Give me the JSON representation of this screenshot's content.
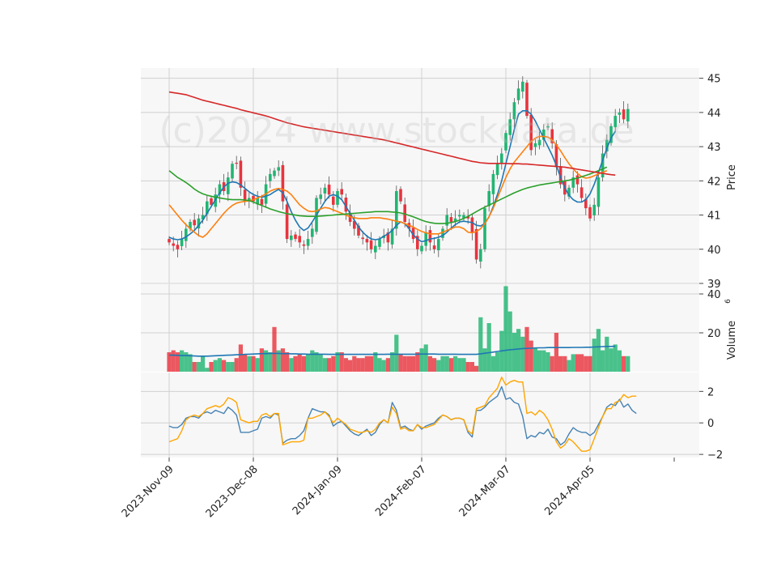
{
  "watermark": "(c)2024 www.stockdata.de",
  "colors": {
    "up": "#22b573",
    "down": "#e8343e",
    "sma_fast": "#1f77b4",
    "sma_mid": "#ff7f0e",
    "sma_slow": "#2ca02c",
    "sma_long": "#d62728",
    "volume_ma": "#1f77b4",
    "macd": "#4682b4",
    "signal": "#ffa500",
    "panel_bg": "#f7f7f7",
    "grid": "#d0d0d0"
  },
  "chart_data": [
    {
      "type": "candlestick",
      "panel": "price",
      "ylabel": "Price",
      "ylim": [
        39,
        45.3
      ],
      "yticks": [
        39,
        40,
        41,
        42,
        43,
        44,
        45
      ],
      "xlabels": [
        "2023-Nov-09",
        "2023-Dec-08",
        "2024-Jan-09",
        "2024-Feb-07",
        "2024-Mar-07",
        "2024-Apr-05"
      ],
      "xlabel_index": [
        0,
        20,
        40,
        60,
        80,
        100
      ],
      "closes": [
        40.2,
        40.1,
        40.0,
        40.3,
        40.6,
        40.8,
        40.7,
        40.9,
        41.0,
        41.4,
        41.3,
        41.6,
        41.9,
        41.7,
        42.1,
        42.5,
        42.5,
        41.8,
        41.4,
        41.5,
        41.4,
        41.5,
        41.3,
        41.9,
        42.2,
        42.3,
        42.4,
        41.4,
        40.3,
        40.4,
        40.3,
        40.2,
        40.1,
        40.3,
        40.6,
        41.5,
        41.6,
        41.8,
        41.6,
        41.3,
        41.7,
        41.6,
        41.1,
        40.8,
        40.6,
        40.4,
        40.3,
        40.2,
        40.0,
        40.1,
        40.3,
        40.4,
        40.2,
        40.6,
        41.7,
        41.4,
        40.8,
        40.6,
        40.3,
        40.0,
        40.1,
        40.5,
        40.2,
        40.0,
        40.3,
        40.6,
        41.0,
        40.8,
        40.9,
        41.0,
        41.0,
        40.9,
        40.5,
        39.7,
        40.0,
        41.2,
        41.7,
        42.2,
        42.5,
        42.8,
        43.4,
        43.8,
        44.3,
        44.7,
        44.9,
        43.9,
        42.9,
        43.1,
        43.2,
        43.5,
        43.6,
        43.1,
        42.4,
        41.9,
        41.6,
        41.8,
        42.1,
        41.9,
        41.5,
        41.2,
        40.9,
        41.3,
        42.1,
        42.8,
        43.2,
        43.6,
        43.9,
        44.0,
        43.8,
        44.1
      ],
      "series": [
        {
          "name": "",
          "key": "sma_fast",
          "values": [
            40.35,
            40.3,
            40.28,
            40.3,
            40.36,
            40.45,
            40.55,
            40.7,
            40.85,
            41.05,
            41.25,
            41.45,
            41.65,
            41.82,
            41.93,
            41.97,
            41.95,
            41.88,
            41.78,
            41.68,
            41.6,
            41.55,
            41.52,
            41.55,
            41.6,
            41.68,
            41.75,
            41.65,
            41.4,
            41.1,
            40.85,
            40.65,
            40.55,
            40.62,
            40.8,
            41.0,
            41.2,
            41.4,
            41.55,
            41.6,
            41.55,
            41.45,
            41.25,
            41.05,
            40.85,
            40.65,
            40.5,
            40.38,
            40.3,
            40.28,
            40.3,
            40.38,
            40.45,
            40.55,
            40.7,
            40.8,
            40.75,
            40.6,
            40.42,
            40.3,
            40.22,
            40.25,
            40.3,
            40.32,
            40.35,
            40.4,
            40.5,
            40.62,
            40.72,
            40.8,
            40.82,
            40.8,
            40.78,
            40.7,
            40.68,
            40.75,
            40.95,
            41.25,
            41.6,
            42.0,
            42.5,
            43.0,
            43.5,
            43.95,
            44.05,
            44.05,
            43.95,
            43.75,
            43.5,
            43.25,
            43.0,
            42.75,
            42.45,
            42.1,
            41.8,
            41.58,
            41.45,
            41.38,
            41.38,
            41.45,
            41.62,
            41.9,
            42.25,
            42.6,
            42.95,
            43.25,
            43.45
          ]
        },
        {
          "name": "",
          "key": "sma_mid",
          "values": [
            41.3,
            41.15,
            41.0,
            40.85,
            40.72,
            40.6,
            40.5,
            40.4,
            40.35,
            40.45,
            40.6,
            40.75,
            40.9,
            41.05,
            41.18,
            41.28,
            41.35,
            41.38,
            41.4,
            41.42,
            41.45,
            41.5,
            41.55,
            41.62,
            41.7,
            41.75,
            41.78,
            41.75,
            41.7,
            41.6,
            41.45,
            41.3,
            41.2,
            41.12,
            41.1,
            41.12,
            41.18,
            41.22,
            41.2,
            41.15,
            41.1,
            41.05,
            41.0,
            40.95,
            40.92,
            40.9,
            40.9,
            40.9,
            40.92,
            40.92,
            40.92,
            40.9,
            40.88,
            40.85,
            40.82,
            40.8,
            40.75,
            40.7,
            40.65,
            40.58,
            40.52,
            40.48,
            40.45,
            40.45,
            40.45,
            40.5,
            40.55,
            40.6,
            40.65,
            40.65,
            40.6,
            40.5,
            40.48,
            40.52,
            40.6,
            40.75,
            40.95,
            41.2,
            41.5,
            41.8,
            42.1,
            42.35,
            42.55,
            42.7,
            42.85,
            43.0,
            43.15,
            43.25,
            43.3,
            43.3,
            43.28,
            43.2,
            43.05,
            42.88,
            42.68,
            42.5,
            42.35,
            42.22,
            42.12,
            42.08,
            42.1,
            42.15,
            42.2,
            42.25,
            42.3
          ]
        },
        {
          "name": "",
          "key": "sma_slow",
          "values": [
            42.3,
            42.2,
            42.1,
            42.03,
            41.95,
            41.86,
            41.76,
            41.68,
            41.62,
            41.58,
            41.55,
            41.52,
            41.5,
            41.48,
            41.46,
            41.45,
            41.45,
            41.45,
            41.44,
            41.42,
            41.38,
            41.33,
            41.28,
            41.23,
            41.18,
            41.14,
            41.1,
            41.07,
            41.04,
            41.02,
            41.0,
            40.98,
            40.97,
            40.96,
            40.96,
            40.96,
            40.97,
            40.98,
            40.99,
            41.0,
            41.01,
            41.02,
            41.03,
            41.04,
            41.05,
            41.06,
            41.07,
            41.08,
            41.09,
            41.1,
            41.1,
            41.1,
            41.1,
            41.09,
            41.08,
            41.06,
            41.03,
            40.99,
            40.95,
            40.9,
            40.85,
            40.81,
            40.78,
            40.76,
            40.75,
            40.75,
            40.76,
            40.78,
            40.81,
            40.85,
            40.9,
            40.96,
            41.03,
            41.1,
            41.17,
            41.23,
            41.29,
            41.35,
            41.41,
            41.47,
            41.53,
            41.59,
            41.65,
            41.7,
            41.75,
            41.79,
            41.82,
            41.85,
            41.88,
            41.9,
            41.92,
            41.94,
            41.96,
            41.98,
            42.0,
            42.02,
            42.05,
            42.08,
            42.12,
            42.16,
            42.2,
            42.25,
            42.3,
            42.35,
            42.4
          ]
        },
        {
          "name": "",
          "key": "sma_long",
          "values": [
            44.6,
            44.58,
            44.56,
            44.54,
            44.52,
            44.48,
            44.44,
            44.4,
            44.36,
            44.33,
            44.3,
            44.27,
            44.24,
            44.21,
            44.18,
            44.15,
            44.12,
            44.08,
            44.05,
            44.02,
            43.99,
            43.96,
            43.93,
            43.9,
            43.86,
            43.82,
            43.78,
            43.74,
            43.7,
            43.67,
            43.64,
            43.61,
            43.58,
            43.56,
            43.54,
            43.52,
            43.5,
            43.48,
            43.46,
            43.44,
            43.42,
            43.4,
            43.38,
            43.36,
            43.34,
            43.32,
            43.3,
            43.28,
            43.26,
            43.24,
            43.22,
            43.2,
            43.17,
            43.14,
            43.11,
            43.08,
            43.05,
            43.02,
            42.99,
            42.96,
            42.93,
            42.9,
            42.87,
            42.84,
            42.81,
            42.78,
            42.75,
            42.72,
            42.69,
            42.66,
            42.63,
            42.6,
            42.57,
            42.55,
            42.53,
            42.52,
            42.51,
            42.51,
            42.51,
            42.51,
            42.51,
            42.5,
            42.5,
            42.5,
            42.49,
            42.49,
            42.48,
            42.47,
            42.46,
            42.45,
            42.44,
            42.43,
            42.42,
            42.41,
            42.4,
            42.38,
            42.36,
            42.34,
            42.32,
            42.3,
            42.28,
            42.26,
            42.24,
            42.22,
            42.2,
            42.18,
            42.17
          ]
        }
      ]
    },
    {
      "type": "bar",
      "panel": "volume",
      "ylabel": "Volume",
      "ylabel_exponent": "6",
      "ylim": [
        0,
        45
      ],
      "yticks": [
        20,
        40
      ],
      "values": [
        10,
        11,
        10,
        11,
        10,
        9,
        5,
        5,
        8,
        2,
        5,
        6,
        7,
        6,
        5,
        5,
        7,
        14,
        9,
        8,
        8,
        7,
        12,
        11,
        10,
        23,
        11,
        12,
        10,
        7,
        8,
        9,
        8,
        9,
        11,
        10,
        9,
        7,
        7,
        8,
        10,
        10,
        7,
        6,
        8,
        7,
        7,
        8,
        8,
        10,
        7,
        6,
        7,
        10,
        19,
        9,
        8,
        8,
        8,
        10,
        12,
        14,
        8,
        7,
        6,
        8,
        8,
        7,
        8,
        7,
        7,
        5,
        5,
        3,
        28,
        12,
        25,
        8,
        10,
        21,
        44,
        31,
        20,
        22,
        18,
        23,
        16,
        12,
        11,
        11,
        10,
        8,
        20,
        8,
        8,
        6,
        9,
        9,
        9,
        8,
        8,
        17,
        22,
        11,
        18,
        12,
        14,
        11,
        8,
        8
      ],
      "directions": [
        0,
        0,
        0,
        1,
        1,
        1,
        0,
        1,
        1,
        1,
        0,
        1,
        1,
        0,
        1,
        1,
        0,
        0,
        0,
        1,
        0,
        1,
        0,
        1,
        1,
        0,
        1,
        0,
        0,
        1,
        0,
        0,
        0,
        1,
        1,
        1,
        1,
        1,
        0,
        0,
        1,
        0,
        0,
        0,
        0,
        0,
        0,
        0,
        0,
        1,
        1,
        1,
        0,
        1,
        1,
        0,
        0,
        0,
        0,
        0,
        1,
        1,
        0,
        0,
        1,
        1,
        1,
        0,
        1,
        1,
        1,
        0,
        0,
        0,
        1,
        1,
        1,
        1,
        1,
        1,
        1,
        1,
        1,
        1,
        1,
        0,
        0,
        1,
        1,
        1,
        1,
        0,
        0,
        0,
        0,
        1,
        1,
        0,
        0,
        0,
        0,
        1,
        1,
        1,
        1,
        1,
        1,
        1,
        0,
        1
      ],
      "series": [
        {
          "name": "",
          "key": "volume_ma",
          "values": [
            8.5,
            8.5,
            8.4,
            8.3,
            8.3,
            8.2,
            8.1,
            8.0,
            8.0,
            8.0,
            8.1,
            8.2,
            8.3,
            8.4,
            8.5,
            8.6,
            8.7,
            8.8,
            8.9,
            9.0,
            9.1,
            9.2,
            9.3,
            9.3,
            9.4,
            9.4,
            9.4,
            9.3,
            9.3,
            9.2,
            9.2,
            9.1,
            9.1,
            9.0,
            9.0,
            9.0,
            9.0,
            9.0,
            8.9,
            8.9,
            8.9,
            8.9,
            8.9,
            8.9,
            8.9,
            8.9,
            8.9,
            8.9,
            8.9,
            8.9,
            8.9,
            8.9,
            9.0,
            9.0,
            9.0,
            9.0,
            9.0,
            9.0,
            9.0,
            9.0,
            9.1,
            9.1,
            9.1,
            9.1,
            9.0,
            9.0,
            9.0,
            9.0,
            9.0,
            8.9,
            8.9,
            8.9,
            8.9,
            8.9,
            9.2,
            9.5,
            9.8,
            10.1,
            10.4,
            10.7,
            11.0,
            11.3,
            11.5,
            11.7,
            11.9,
            12.0,
            12.1,
            12.2,
            12.3,
            12.3,
            12.4,
            12.4,
            12.4,
            12.4,
            12.4,
            12.4,
            12.5,
            12.5,
            12.5,
            12.6,
            12.6,
            12.7,
            12.8,
            12.9,
            13.0,
            13.0,
            13.1
          ]
        }
      ]
    },
    {
      "type": "line",
      "panel": "oscillator",
      "ylim": [
        -2.2,
        3.2
      ],
      "yticks": [
        -2,
        0,
        2
      ],
      "series": [
        {
          "name": "",
          "key": "macd",
          "values": [
            -0.2,
            -0.3,
            -0.3,
            -0.1,
            0.3,
            0.4,
            0.4,
            0.3,
            0.6,
            0.7,
            0.6,
            0.8,
            0.7,
            0.6,
            1.0,
            0.8,
            0.5,
            -0.6,
            -0.6,
            -0.6,
            -0.5,
            -0.4,
            0.3,
            0.4,
            0.3,
            0.6,
            0.5,
            -1.3,
            -1.1,
            -1.0,
            -1.0,
            -0.8,
            -0.5,
            0.3,
            0.9,
            0.8,
            0.7,
            0.7,
            0.5,
            -0.2,
            0.0,
            0.1,
            -0.2,
            -0.5,
            -0.7,
            -0.8,
            -0.6,
            -0.4,
            -0.8,
            -0.6,
            -0.1,
            0.2,
            0.0,
            1.3,
            0.8,
            -0.3,
            -0.2,
            -0.4,
            -0.5,
            -0.1,
            -0.4,
            -0.2,
            -0.1,
            0.0,
            0.3,
            0.5,
            0.4,
            0.2,
            0.3,
            0.3,
            0.2,
            -0.6,
            -0.9,
            0.8,
            0.8,
            1.0,
            1.3,
            1.5,
            1.7,
            2.3,
            1.5,
            1.6,
            1.3,
            1.2,
            0.4,
            -1.0,
            -0.8,
            -0.9,
            -0.6,
            -0.7,
            -0.4,
            -0.9,
            -1.0,
            -1.4,
            -1.2,
            -0.7,
            -0.3,
            -0.5,
            -0.6,
            -0.6,
            -0.8,
            -0.6,
            -0.1,
            0.4,
            1.0,
            1.2,
            1.1,
            1.5,
            1.0,
            1.2,
            0.8,
            0.6
          ]
        },
        {
          "name": "",
          "key": "signal",
          "values": [
            -1.2,
            -1.1,
            -1.0,
            -0.5,
            0.2,
            0.4,
            0.5,
            0.4,
            0.6,
            0.9,
            1.0,
            1.1,
            1.0,
            1.2,
            1.6,
            1.5,
            1.3,
            0.2,
            0.1,
            0.0,
            0.1,
            0.1,
            0.5,
            0.6,
            0.4,
            0.6,
            0.6,
            -1.4,
            -1.3,
            -1.2,
            -1.2,
            -1.2,
            -1.1,
            0.3,
            0.3,
            0.4,
            0.5,
            0.7,
            0.4,
            0.0,
            0.3,
            0.1,
            -0.1,
            -0.4,
            -0.5,
            -0.6,
            -0.6,
            -0.5,
            -0.6,
            -0.4,
            0.0,
            0.2,
            0.0,
            1.0,
            0.6,
            -0.4,
            -0.3,
            -0.5,
            -0.5,
            -0.1,
            -0.3,
            -0.3,
            -0.2,
            -0.1,
            0.2,
            0.5,
            0.4,
            0.2,
            0.3,
            0.3,
            0.2,
            -0.5,
            -0.7,
            0.9,
            1.0,
            1.1,
            1.6,
            1.9,
            2.2,
            2.9,
            2.4,
            2.6,
            2.7,
            2.6,
            2.6,
            0.6,
            0.7,
            0.5,
            0.8,
            0.6,
            0.2,
            -0.4,
            -1.2,
            -1.6,
            -1.4,
            -1.0,
            -1.2,
            -1.5,
            -1.8,
            -1.8,
            -1.7,
            -1.0,
            -0.3,
            0.4,
            0.9,
            0.9,
            1.3,
            1.4,
            1.8,
            1.6,
            1.7,
            1.7
          ]
        }
      ]
    }
  ]
}
